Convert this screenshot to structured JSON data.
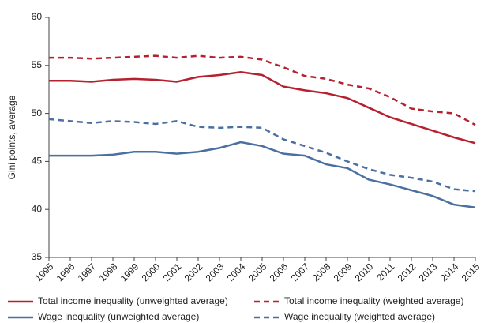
{
  "chart_data": {
    "type": "line",
    "y_label": "Gini points, average",
    "categories": [
      "1995",
      "1996",
      "1997",
      "1998",
      "1999",
      "2000",
      "2001",
      "2002",
      "2003",
      "2004",
      "2005",
      "2006",
      "2007",
      "2008",
      "2009",
      "2010",
      "2011",
      "2012",
      "2013",
      "2014",
      "2015"
    ],
    "ylim": [
      35,
      60
    ],
    "yticks": [
      35,
      40,
      45,
      50,
      55,
      60
    ],
    "grid": false,
    "series": [
      {
        "name": "Total income inequality (unweighted average)",
        "color": "#b5212e",
        "dashed": false,
        "values": [
          53.4,
          53.4,
          53.3,
          53.5,
          53.6,
          53.5,
          53.3,
          53.8,
          54.0,
          54.3,
          54.0,
          52.8,
          52.4,
          52.1,
          51.6,
          50.6,
          49.6,
          48.9,
          48.2,
          47.5,
          46.9
        ]
      },
      {
        "name": "Total income inequality (weighted average)",
        "color": "#b5212e",
        "dashed": true,
        "values": [
          55.8,
          55.8,
          55.7,
          55.8,
          55.9,
          56.0,
          55.8,
          56.0,
          55.8,
          55.9,
          55.6,
          54.8,
          53.9,
          53.6,
          53.0,
          52.6,
          51.7,
          50.5,
          50.2,
          50.0,
          48.8
        ]
      },
      {
        "name": "Wage inequality (unweighted average)",
        "color": "#4a6fa0",
        "dashed": false,
        "values": [
          45.6,
          45.6,
          45.6,
          45.7,
          46.0,
          46.0,
          45.8,
          46.0,
          46.4,
          47.0,
          46.6,
          45.8,
          45.6,
          44.7,
          44.3,
          43.1,
          42.6,
          42.0,
          41.4,
          40.5,
          40.2
        ]
      },
      {
        "name": "Wage inequality (weighted average)",
        "color": "#4a6fa0",
        "dashed": true,
        "values": [
          49.4,
          49.2,
          49.0,
          49.2,
          49.1,
          48.9,
          49.2,
          48.6,
          48.5,
          48.6,
          48.5,
          47.3,
          46.6,
          45.9,
          45.0,
          44.2,
          43.6,
          43.3,
          42.9,
          42.1,
          41.9
        ]
      }
    ]
  }
}
